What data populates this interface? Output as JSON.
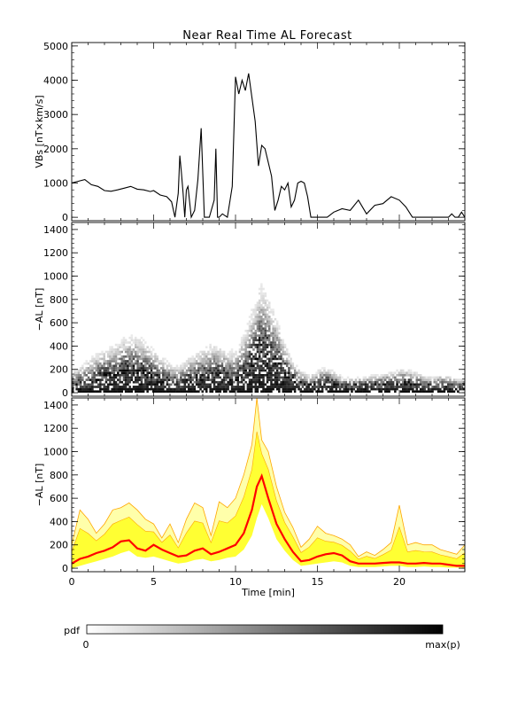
{
  "title": "Near Real Time AL Forecast",
  "chart_data": [
    {
      "type": "line",
      "ylabel": "VBs [nT×km/s]",
      "xlim": [
        0,
        24
      ],
      "ylim": [
        -100,
        5100
      ],
      "yticks": [
        0,
        1000,
        2000,
        3000,
        4000,
        5000
      ],
      "grid": false,
      "color": "#000000",
      "x": [
        0,
        0.4,
        0.8,
        1.2,
        1.6,
        2.0,
        2.4,
        2.8,
        3.2,
        3.6,
        4.0,
        4.4,
        4.8,
        5.0,
        5.4,
        5.8,
        6.1,
        6.3,
        6.5,
        6.6,
        6.7,
        6.8,
        6.9,
        7.0,
        7.1,
        7.3,
        7.5,
        7.7,
        7.9,
        8.1,
        8.4,
        8.7,
        8.8,
        8.9,
        9.0,
        9.2,
        9.5,
        9.8,
        10.0,
        10.2,
        10.4,
        10.6,
        10.8,
        11.0,
        11.2,
        11.4,
        11.6,
        11.8,
        12.0,
        12.2,
        12.4,
        12.6,
        12.8,
        13.0,
        13.2,
        13.4,
        13.6,
        13.8,
        14.0,
        14.2,
        14.4,
        14.6,
        14.8,
        15.0,
        15.2,
        15.4,
        15.6,
        16.0,
        16.5,
        17.0,
        17.5,
        18.0,
        18.5,
        19.0,
        19.5,
        20.0,
        20.4,
        20.8,
        21.2,
        21.6,
        22.0,
        22.5,
        23.0,
        23.2,
        23.4,
        23.6,
        23.8,
        24.0
      ],
      "y": [
        1000,
        1050,
        1100,
        950,
        900,
        780,
        760,
        800,
        850,
        900,
        820,
        800,
        750,
        780,
        650,
        600,
        450,
        0,
        700,
        1800,
        1300,
        700,
        0,
        800,
        900,
        0,
        200,
        1100,
        2600,
        0,
        0,
        500,
        2000,
        0,
        0,
        100,
        0,
        900,
        4100,
        3600,
        4000,
        3700,
        4200,
        3500,
        2800,
        1500,
        2100,
        2000,
        1600,
        1200,
        200,
        500,
        900,
        800,
        1000,
        300,
        500,
        1000,
        1050,
        1000,
        600,
        0,
        0,
        0,
        0,
        0,
        0,
        150,
        250,
        200,
        500,
        100,
        350,
        400,
        600,
        500,
        300,
        0,
        0,
        0,
        0,
        0,
        0,
        100,
        0,
        0,
        150,
        0
      ]
    },
    {
      "type": "heatmap",
      "ylabel": "−AL [nT]",
      "xlim": [
        0,
        24
      ],
      "ylim": [
        -30,
        1460
      ],
      "yticks": [
        0,
        200,
        400,
        600,
        800,
        1000,
        1200,
        1400
      ],
      "x": [
        0,
        0.5,
        1,
        1.5,
        2,
        2.5,
        3,
        3.5,
        4,
        4.5,
        5,
        5.5,
        6,
        6.5,
        7,
        7.5,
        8,
        8.5,
        9,
        9.5,
        10,
        10.5,
        11,
        11.5,
        12,
        12.5,
        13,
        13.5,
        14,
        14.5,
        15,
        15.5,
        16,
        16.5,
        17,
        17.5,
        18,
        18.5,
        19,
        19.5,
        20,
        20.5,
        21,
        21.5,
        22,
        22.5,
        23,
        23.5,
        24
      ],
      "center": [
        40,
        50,
        70,
        90,
        110,
        120,
        140,
        150,
        140,
        120,
        100,
        80,
        60,
        50,
        60,
        80,
        100,
        120,
        110,
        90,
        80,
        130,
        200,
        320,
        280,
        220,
        140,
        80,
        50,
        40,
        60,
        70,
        50,
        40,
        40,
        40,
        40,
        40,
        50,
        50,
        60,
        60,
        50,
        40,
        40,
        50,
        40,
        30,
        40
      ],
      "spread": [
        150,
        200,
        250,
        280,
        300,
        320,
        360,
        380,
        380,
        360,
        300,
        250,
        200,
        200,
        260,
        300,
        320,
        340,
        330,
        300,
        320,
        450,
        600,
        700,
        600,
        450,
        300,
        200,
        150,
        120,
        150,
        160,
        140,
        100,
        90,
        100,
        110,
        120,
        130,
        140,
        160,
        150,
        140,
        110,
        100,
        110,
        110,
        90,
        100
      ],
      "colorbar": {
        "label": "pdf",
        "min_label": "0",
        "max_label": "max(p)"
      }
    },
    {
      "type": "area",
      "ylabel": "−AL [nT]",
      "xlabel": "Time [min]",
      "xlim": [
        0,
        24
      ],
      "ylim": [
        -30,
        1460
      ],
      "yticks": [
        0,
        200,
        400,
        600,
        800,
        1000,
        1200,
        1400
      ],
      "xticks": [
        0,
        5,
        10,
        15,
        20
      ],
      "colors": {
        "median": "#ff0000",
        "band": "#ffff33",
        "outer": "#ffffaa",
        "edge": "#ffa500"
      },
      "x": [
        0,
        0.5,
        1,
        1.5,
        2,
        2.5,
        3,
        3.5,
        4,
        4.5,
        5,
        5.5,
        6,
        6.5,
        7,
        7.5,
        8,
        8.5,
        9,
        9.5,
        10,
        10.5,
        11,
        11.3,
        11.6,
        12,
        12.5,
        13,
        13.5,
        14,
        14.5,
        15,
        15.5,
        16,
        16.5,
        17,
        17.5,
        18,
        18.5,
        19,
        19.5,
        20,
        20.5,
        21,
        21.5,
        22,
        22.5,
        23,
        23.5,
        24
      ],
      "median": [
        40,
        80,
        100,
        130,
        150,
        180,
        230,
        240,
        170,
        150,
        200,
        160,
        130,
        100,
        110,
        150,
        170,
        120,
        140,
        170,
        200,
        300,
        500,
        700,
        790,
        600,
        380,
        250,
        140,
        60,
        70,
        100,
        120,
        130,
        110,
        60,
        40,
        40,
        40,
        45,
        50,
        50,
        40,
        40,
        45,
        40,
        40,
        30,
        20,
        20
      ],
      "lower": [
        0,
        20,
        40,
        60,
        80,
        100,
        130,
        150,
        100,
        90,
        100,
        80,
        60,
        40,
        50,
        70,
        80,
        60,
        70,
        90,
        100,
        160,
        280,
        430,
        550,
        430,
        250,
        150,
        70,
        20,
        30,
        40,
        50,
        60,
        50,
        20,
        10,
        10,
        10,
        15,
        20,
        20,
        10,
        10,
        15,
        10,
        10,
        5,
        5,
        5
      ],
      "upper": [
        200,
        500,
        420,
        300,
        380,
        500,
        520,
        560,
        500,
        420,
        380,
        260,
        380,
        220,
        420,
        560,
        520,
        280,
        570,
        520,
        600,
        800,
        1060,
        1460,
        1100,
        1000,
        700,
        480,
        350,
        180,
        250,
        360,
        300,
        280,
        250,
        200,
        100,
        140,
        110,
        160,
        220,
        540,
        200,
        220,
        200,
        200,
        160,
        140,
        120,
        200
      ]
    }
  ]
}
